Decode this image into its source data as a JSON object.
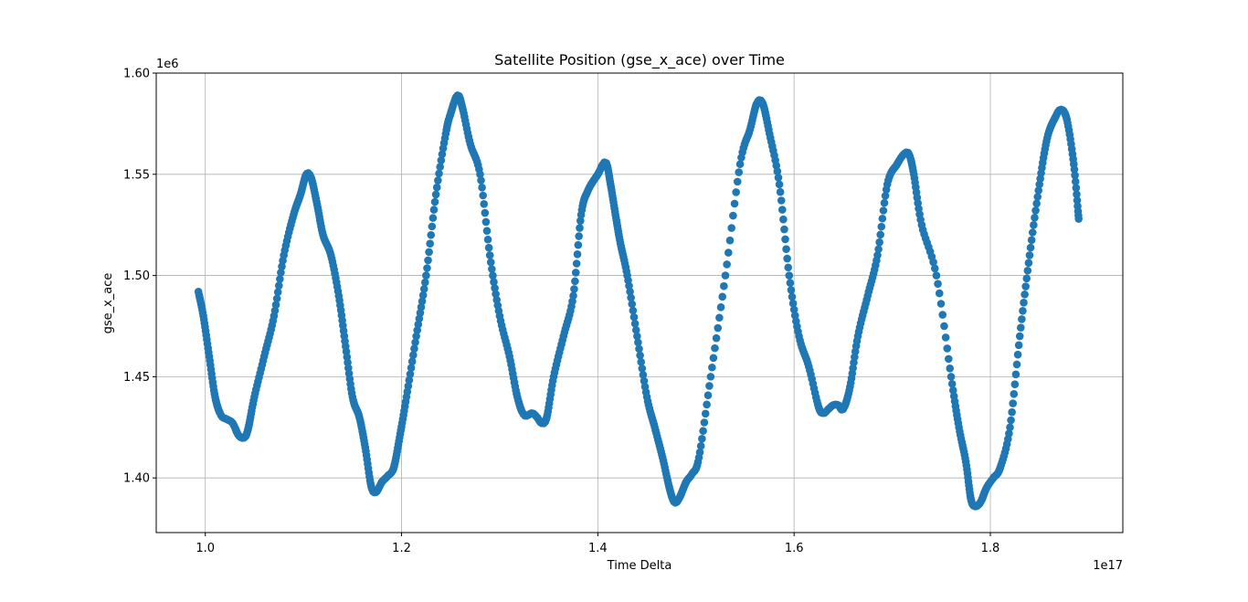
{
  "chart_data": {
    "type": "scatter",
    "title": "Satellite Position (gse_x_ace) over Time",
    "xlabel": "Time Delta",
    "ylabel": "gse_x_ace",
    "x_offset_label": "1e17",
    "y_offset_label": "1e6",
    "xlim": [
      0.95,
      1.935
    ],
    "ylim": [
      1.373,
      1.6
    ],
    "xticks": [
      {
        "value": 1.0,
        "label": "1.0"
      },
      {
        "value": 1.2,
        "label": "1.2"
      },
      {
        "value": 1.4,
        "label": "1.4"
      },
      {
        "value": 1.6,
        "label": "1.6"
      },
      {
        "value": 1.8,
        "label": "1.8"
      }
    ],
    "yticks": [
      {
        "value": 1.4,
        "label": "1.40"
      },
      {
        "value": 1.45,
        "label": "1.45"
      },
      {
        "value": 1.5,
        "label": "1.50"
      },
      {
        "value": 1.55,
        "label": "1.55"
      },
      {
        "value": 1.6,
        "label": "1.60"
      }
    ],
    "grid": true,
    "series": [
      {
        "color": "#1f77b4",
        "x": [
          0.993,
          0.998,
          1.004,
          1.01,
          1.016,
          1.022,
          1.028,
          1.034,
          1.04,
          1.044,
          1.05,
          1.06,
          1.07,
          1.08,
          1.09,
          1.097,
          1.103,
          1.108,
          1.114,
          1.12,
          1.128,
          1.136,
          1.143,
          1.15,
          1.157,
          1.163,
          1.169,
          1.174,
          1.18,
          1.186,
          1.192,
          1.198,
          1.205,
          1.215,
          1.225,
          1.235,
          1.245,
          1.25,
          1.257,
          1.262,
          1.27,
          1.28,
          1.29,
          1.3,
          1.31,
          1.318,
          1.325,
          1.333,
          1.338,
          1.343,
          1.348,
          1.355,
          1.365,
          1.375,
          1.383,
          1.39,
          1.4,
          1.408,
          1.413,
          1.418,
          1.423,
          1.43,
          1.44,
          1.45,
          1.458,
          1.466,
          1.473,
          1.478,
          1.483,
          1.49,
          1.496,
          1.503,
          1.515,
          1.53,
          1.545,
          1.555,
          1.562,
          1.568,
          1.575,
          1.585,
          1.595,
          1.605,
          1.615,
          1.625,
          1.63,
          1.635,
          1.64,
          1.645,
          1.65,
          1.657,
          1.665,
          1.675,
          1.685,
          1.695,
          1.705,
          1.712,
          1.717,
          1.722,
          1.73,
          1.745,
          1.76,
          1.768,
          1.775,
          1.78,
          1.784,
          1.79,
          1.796,
          1.803,
          1.81,
          1.82,
          1.83,
          1.84,
          1.85,
          1.858,
          1.866,
          1.872,
          1.878,
          1.885,
          1.89
        ],
        "y": [
          1.492,
          1.48,
          1.46,
          1.44,
          1.431,
          1.429,
          1.427,
          1.421,
          1.42,
          1.425,
          1.44,
          1.46,
          1.48,
          1.51,
          1.53,
          1.54,
          1.55,
          1.548,
          1.535,
          1.52,
          1.51,
          1.49,
          1.465,
          1.44,
          1.43,
          1.415,
          1.396,
          1.393,
          1.398,
          1.401,
          1.405,
          1.42,
          1.44,
          1.47,
          1.5,
          1.54,
          1.57,
          1.58,
          1.589,
          1.583,
          1.565,
          1.55,
          1.51,
          1.48,
          1.46,
          1.44,
          1.431,
          1.432,
          1.43,
          1.427,
          1.43,
          1.45,
          1.47,
          1.49,
          1.53,
          1.542,
          1.55,
          1.556,
          1.545,
          1.53,
          1.516,
          1.5,
          1.47,
          1.44,
          1.425,
          1.41,
          1.395,
          1.388,
          1.39,
          1.398,
          1.402,
          1.41,
          1.45,
          1.5,
          1.555,
          1.572,
          1.585,
          1.585,
          1.57,
          1.545,
          1.5,
          1.47,
          1.455,
          1.435,
          1.432,
          1.434,
          1.436,
          1.436,
          1.434,
          1.445,
          1.47,
          1.49,
          1.51,
          1.545,
          1.555,
          1.56,
          1.56,
          1.55,
          1.525,
          1.5,
          1.45,
          1.425,
          1.408,
          1.39,
          1.386,
          1.388,
          1.395,
          1.4,
          1.405,
          1.425,
          1.47,
          1.51,
          1.545,
          1.568,
          1.578,
          1.582,
          1.577,
          1.555,
          1.528
        ]
      }
    ]
  }
}
